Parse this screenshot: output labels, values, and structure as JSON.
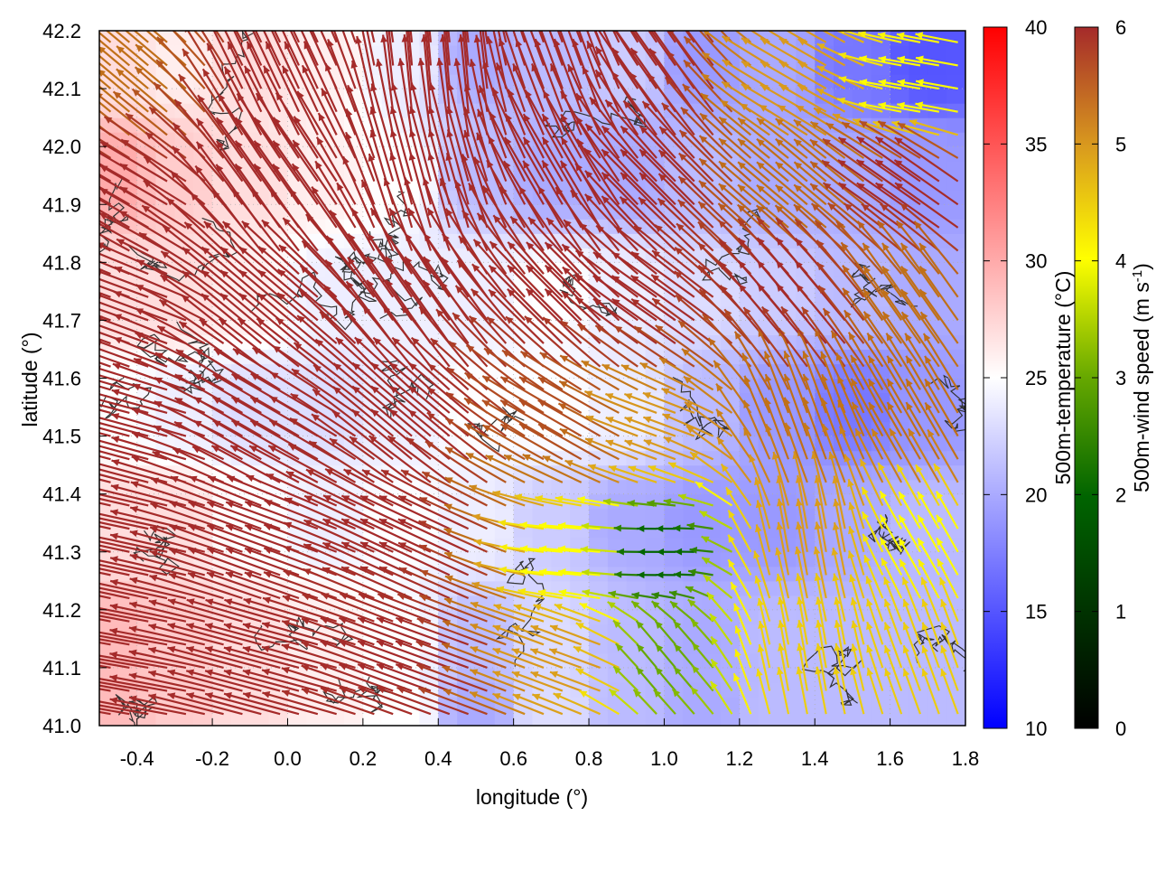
{
  "chart_data": {
    "type": "heatmap",
    "title": "",
    "xlabel": "longitude (°)",
    "ylabel": "latitude (°)",
    "xlim": [
      -0.5,
      1.8
    ],
    "ylim": [
      41.0,
      42.2
    ],
    "x_ticks": [
      "-0.4",
      "-0.2",
      "0.0",
      "0.2",
      "0.4",
      "0.6",
      "0.8",
      "1.0",
      "1.2",
      "1.4",
      "1.6",
      "1.8"
    ],
    "y_ticks": [
      "41.0",
      "41.1",
      "41.2",
      "41.3",
      "41.4",
      "41.5",
      "41.6",
      "41.7",
      "41.8",
      "41.9",
      "42.0",
      "42.1",
      "42.2"
    ],
    "grid": true,
    "temperature_colorbar": {
      "label": "500m-temperature (°C)",
      "range": [
        10,
        40
      ],
      "ticks": [
        "10",
        "15",
        "20",
        "25",
        "30",
        "35",
        "40"
      ],
      "colors": [
        "#0000ff",
        "#ffffff",
        "#ff0000"
      ]
    },
    "wind_colorbar": {
      "label_main": "500m-wind speed (m s",
      "label_exponent": "-1",
      "label_close": ")",
      "range": [
        0,
        6
      ],
      "ticks": [
        "0",
        "1",
        "2",
        "3",
        "4",
        "5",
        "6"
      ],
      "colors": [
        "#000000",
        "#006400",
        "#66a800",
        "#ffff00",
        "#d99a1e",
        "#c07018",
        "#a52a2a"
      ]
    },
    "temperature_field": [
      {
        "lon": -0.45,
        "lat": 42.15,
        "t": 27
      },
      {
        "lon": -0.3,
        "lat": 42.15,
        "t": 26
      },
      {
        "lon": -0.1,
        "lat": 42.15,
        "t": 27
      },
      {
        "lon": 0.1,
        "lat": 42.15,
        "t": 26
      },
      {
        "lon": 0.3,
        "lat": 42.15,
        "t": 24
      },
      {
        "lon": 0.5,
        "lat": 42.15,
        "t": 20
      },
      {
        "lon": 0.7,
        "lat": 42.15,
        "t": 21
      },
      {
        "lon": 0.9,
        "lat": 42.15,
        "t": 22
      },
      {
        "lon": 1.1,
        "lat": 42.15,
        "t": 19
      },
      {
        "lon": 1.3,
        "lat": 42.15,
        "t": 20
      },
      {
        "lon": 1.5,
        "lat": 42.15,
        "t": 17
      },
      {
        "lon": 1.7,
        "lat": 42.15,
        "t": 15
      },
      {
        "lon": -0.45,
        "lat": 41.95,
        "t": 30
      },
      {
        "lon": -0.3,
        "lat": 41.95,
        "t": 28
      },
      {
        "lon": -0.1,
        "lat": 41.95,
        "t": 27
      },
      {
        "lon": 0.1,
        "lat": 41.95,
        "t": 26
      },
      {
        "lon": 0.3,
        "lat": 41.95,
        "t": 25
      },
      {
        "lon": 0.5,
        "lat": 41.95,
        "t": 21
      },
      {
        "lon": 0.7,
        "lat": 41.95,
        "t": 20
      },
      {
        "lon": 0.9,
        "lat": 41.95,
        "t": 20
      },
      {
        "lon": 1.1,
        "lat": 41.95,
        "t": 21
      },
      {
        "lon": 1.3,
        "lat": 41.95,
        "t": 20
      },
      {
        "lon": 1.5,
        "lat": 41.95,
        "t": 20
      },
      {
        "lon": 1.7,
        "lat": 41.95,
        "t": 19
      },
      {
        "lon": -0.45,
        "lat": 41.75,
        "t": 27
      },
      {
        "lon": -0.3,
        "lat": 41.75,
        "t": 27
      },
      {
        "lon": -0.1,
        "lat": 41.75,
        "t": 26
      },
      {
        "lon": 0.1,
        "lat": 41.75,
        "t": 24
      },
      {
        "lon": 0.3,
        "lat": 41.75,
        "t": 24
      },
      {
        "lon": 0.5,
        "lat": 41.75,
        "t": 24
      },
      {
        "lon": 0.7,
        "lat": 41.75,
        "t": 25
      },
      {
        "lon": 0.9,
        "lat": 41.75,
        "t": 24
      },
      {
        "lon": 1.1,
        "lat": 41.75,
        "t": 23
      },
      {
        "lon": 1.3,
        "lat": 41.75,
        "t": 22
      },
      {
        "lon": 1.5,
        "lat": 41.75,
        "t": 21
      },
      {
        "lon": 1.7,
        "lat": 41.75,
        "t": 20
      },
      {
        "lon": -0.45,
        "lat": 41.55,
        "t": 25
      },
      {
        "lon": -0.3,
        "lat": 41.55,
        "t": 24
      },
      {
        "lon": -0.1,
        "lat": 41.55,
        "t": 23
      },
      {
        "lon": 0.1,
        "lat": 41.55,
        "t": 23
      },
      {
        "lon": 0.3,
        "lat": 41.55,
        "t": 24
      },
      {
        "lon": 0.5,
        "lat": 41.55,
        "t": 25
      },
      {
        "lon": 0.7,
        "lat": 41.55,
        "t": 25
      },
      {
        "lon": 0.9,
        "lat": 41.55,
        "t": 24
      },
      {
        "lon": 1.1,
        "lat": 41.55,
        "t": 21
      },
      {
        "lon": 1.3,
        "lat": 41.55,
        "t": 19
      },
      {
        "lon": 1.5,
        "lat": 41.55,
        "t": 17
      },
      {
        "lon": 1.7,
        "lat": 41.55,
        "t": 19
      },
      {
        "lon": -0.45,
        "lat": 41.35,
        "t": 27
      },
      {
        "lon": -0.3,
        "lat": 41.35,
        "t": 27
      },
      {
        "lon": -0.1,
        "lat": 41.35,
        "t": 25
      },
      {
        "lon": 0.1,
        "lat": 41.35,
        "t": 24
      },
      {
        "lon": 0.3,
        "lat": 41.35,
        "t": 25
      },
      {
        "lon": 0.5,
        "lat": 41.35,
        "t": 24
      },
      {
        "lon": 0.7,
        "lat": 41.35,
        "t": 22
      },
      {
        "lon": 0.9,
        "lat": 41.35,
        "t": 20
      },
      {
        "lon": 1.1,
        "lat": 41.35,
        "t": 19
      },
      {
        "lon": 1.3,
        "lat": 41.35,
        "t": 19
      },
      {
        "lon": 1.5,
        "lat": 41.35,
        "t": 20
      },
      {
        "lon": 1.7,
        "lat": 41.35,
        "t": 21
      },
      {
        "lon": -0.45,
        "lat": 41.15,
        "t": 29
      },
      {
        "lon": -0.3,
        "lat": 41.15,
        "t": 28
      },
      {
        "lon": -0.1,
        "lat": 41.15,
        "t": 27
      },
      {
        "lon": 0.1,
        "lat": 41.15,
        "t": 26
      },
      {
        "lon": 0.3,
        "lat": 41.15,
        "t": 25
      },
      {
        "lon": 0.5,
        "lat": 41.15,
        "t": 21
      },
      {
        "lon": 0.7,
        "lat": 41.15,
        "t": 23
      },
      {
        "lon": 0.9,
        "lat": 41.15,
        "t": 21
      },
      {
        "lon": 1.1,
        "lat": 41.15,
        "t": 20
      },
      {
        "lon": 1.3,
        "lat": 41.15,
        "t": 21
      },
      {
        "lon": 1.5,
        "lat": 41.15,
        "t": 21
      },
      {
        "lon": 1.7,
        "lat": 41.15,
        "t": 21
      },
      {
        "lon": -0.45,
        "lat": 41.03,
        "t": 29
      },
      {
        "lon": -0.3,
        "lat": 41.03,
        "t": 28
      },
      {
        "lon": -0.1,
        "lat": 41.03,
        "t": 27
      },
      {
        "lon": 0.1,
        "lat": 41.03,
        "t": 26
      },
      {
        "lon": 0.3,
        "lat": 41.03,
        "t": 25
      },
      {
        "lon": 0.5,
        "lat": 41.03,
        "t": 20
      },
      {
        "lon": 0.7,
        "lat": 41.03,
        "t": 23
      },
      {
        "lon": 0.9,
        "lat": 41.03,
        "t": 21
      },
      {
        "lon": 1.1,
        "lat": 41.03,
        "t": 20
      },
      {
        "lon": 1.3,
        "lat": 41.03,
        "t": 21
      },
      {
        "lon": 1.5,
        "lat": 41.03,
        "t": 21
      },
      {
        "lon": 1.7,
        "lat": 41.03,
        "t": 21
      }
    ],
    "wind_field": [
      {
        "lon": -0.4,
        "lat": 41.1,
        "speed": 6,
        "dir_deg": 170
      },
      {
        "lon": 0.0,
        "lat": 41.1,
        "speed": 6,
        "dir_deg": 165
      },
      {
        "lon": 0.4,
        "lat": 41.1,
        "speed": 6,
        "dir_deg": 160
      },
      {
        "lon": 0.8,
        "lat": 41.1,
        "speed": 4,
        "dir_deg": 160
      },
      {
        "lon": 1.0,
        "lat": 41.1,
        "speed": 2,
        "dir_deg": 130
      },
      {
        "lon": 1.4,
        "lat": 41.1,
        "speed": 3.5,
        "dir_deg": 100
      },
      {
        "lon": 1.7,
        "lat": 41.1,
        "speed": 3.5,
        "dir_deg": 110
      },
      {
        "lon": -0.4,
        "lat": 41.3,
        "speed": 6,
        "dir_deg": 168
      },
      {
        "lon": 0.0,
        "lat": 41.3,
        "speed": 6,
        "dir_deg": 160
      },
      {
        "lon": 0.4,
        "lat": 41.3,
        "speed": 6,
        "dir_deg": 155
      },
      {
        "lon": 0.8,
        "lat": 41.3,
        "speed": 3,
        "dir_deg": 175
      },
      {
        "lon": 1.0,
        "lat": 41.3,
        "speed": 1,
        "dir_deg": 180
      },
      {
        "lon": 1.4,
        "lat": 41.3,
        "speed": 4,
        "dir_deg": 100
      },
      {
        "lon": 1.7,
        "lat": 41.3,
        "speed": 3,
        "dir_deg": 120
      },
      {
        "lon": -0.4,
        "lat": 41.5,
        "speed": 6,
        "dir_deg": 165
      },
      {
        "lon": 0.0,
        "lat": 41.5,
        "speed": 6,
        "dir_deg": 150
      },
      {
        "lon": 0.4,
        "lat": 41.5,
        "speed": 6,
        "dir_deg": 140
      },
      {
        "lon": 0.8,
        "lat": 41.5,
        "speed": 5.5,
        "dir_deg": 150
      },
      {
        "lon": 1.0,
        "lat": 41.5,
        "speed": 4,
        "dir_deg": 160
      },
      {
        "lon": 1.4,
        "lat": 41.5,
        "speed": 5,
        "dir_deg": 110
      },
      {
        "lon": 1.7,
        "lat": 41.5,
        "speed": 5,
        "dir_deg": 120
      },
      {
        "lon": -0.4,
        "lat": 41.7,
        "speed": 6,
        "dir_deg": 160
      },
      {
        "lon": 0.0,
        "lat": 41.7,
        "speed": 6,
        "dir_deg": 140
      },
      {
        "lon": 0.4,
        "lat": 41.7,
        "speed": 6,
        "dir_deg": 125
      },
      {
        "lon": 0.8,
        "lat": 41.7,
        "speed": 6,
        "dir_deg": 135
      },
      {
        "lon": 1.0,
        "lat": 41.7,
        "speed": 6,
        "dir_deg": 145
      },
      {
        "lon": 1.4,
        "lat": 41.7,
        "speed": 6,
        "dir_deg": 130
      },
      {
        "lon": 1.7,
        "lat": 41.7,
        "speed": 5,
        "dir_deg": 125
      },
      {
        "lon": -0.4,
        "lat": 41.9,
        "speed": 6,
        "dir_deg": 150
      },
      {
        "lon": 0.0,
        "lat": 41.9,
        "speed": 6,
        "dir_deg": 125
      },
      {
        "lon": 0.4,
        "lat": 41.9,
        "speed": 6,
        "dir_deg": 105
      },
      {
        "lon": 0.8,
        "lat": 41.9,
        "speed": 6,
        "dir_deg": 120
      },
      {
        "lon": 1.0,
        "lat": 41.9,
        "speed": 6,
        "dir_deg": 135
      },
      {
        "lon": 1.4,
        "lat": 41.9,
        "speed": 5,
        "dir_deg": 140
      },
      {
        "lon": 1.7,
        "lat": 41.9,
        "speed": 6,
        "dir_deg": 145
      },
      {
        "lon": -0.4,
        "lat": 42.1,
        "speed": 5,
        "dir_deg": 140
      },
      {
        "lon": 0.0,
        "lat": 42.1,
        "speed": 6,
        "dir_deg": 115
      },
      {
        "lon": 0.4,
        "lat": 42.1,
        "speed": 6,
        "dir_deg": 95
      },
      {
        "lon": 0.8,
        "lat": 42.1,
        "speed": 6,
        "dir_deg": 110
      },
      {
        "lon": 1.0,
        "lat": 42.1,
        "speed": 6,
        "dir_deg": 125
      },
      {
        "lon": 1.4,
        "lat": 42.1,
        "speed": 4,
        "dir_deg": 150
      },
      {
        "lon": 1.7,
        "lat": 42.1,
        "speed": 3,
        "dir_deg": 170
      }
    ]
  }
}
